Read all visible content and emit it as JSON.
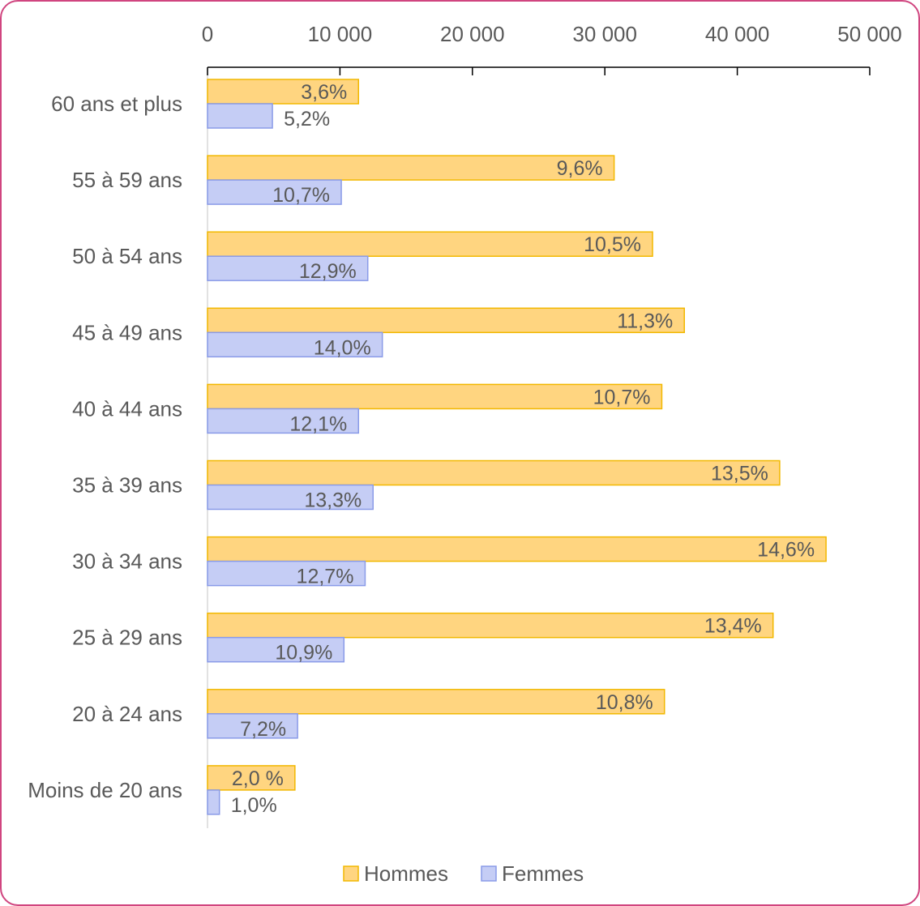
{
  "chart_data": {
    "type": "bar",
    "orientation": "horizontal",
    "categories": [
      "60 ans et plus",
      "55 à 59 ans",
      "50 à 54 ans",
      "45 à 49 ans",
      "40 à 44 ans",
      "35 à 39 ans",
      "30 à 34 ans",
      "25 à 29 ans",
      "20 à 24 ans",
      "Moins de 20 ans"
    ],
    "series": [
      {
        "name": "Hommes",
        "color": "#ffd580",
        "border": "#f2b800",
        "values": [
          11400,
          30700,
          33600,
          36000,
          34300,
          43200,
          46700,
          42700,
          34500,
          6600
        ],
        "labels": [
          "3,6%",
          "9,6%",
          "10,5%",
          "11,3%",
          "10,7%",
          "13,5%",
          "14,6%",
          "13,4%",
          "10,8%",
          "2,0 %"
        ]
      },
      {
        "name": "Femmes",
        "color": "#c5cdf5",
        "border": "#8a9be8",
        "values": [
          4900,
          10100,
          12100,
          13200,
          11400,
          12500,
          11900,
          10300,
          6800,
          900
        ],
        "labels": [
          "5,2%",
          "10,7%",
          "12,9%",
          "14,0%",
          "12,1%",
          "13,3%",
          "12,7%",
          "10,9%",
          "7,2%",
          "1,0%"
        ]
      }
    ],
    "x_ticks": [
      "0",
      "10 000",
      "20 000",
      "30 000",
      "40 000",
      "50 000"
    ],
    "xlim": [
      0,
      50000
    ],
    "axis_position": "top",
    "legend_position": "bottom",
    "grid": false
  }
}
